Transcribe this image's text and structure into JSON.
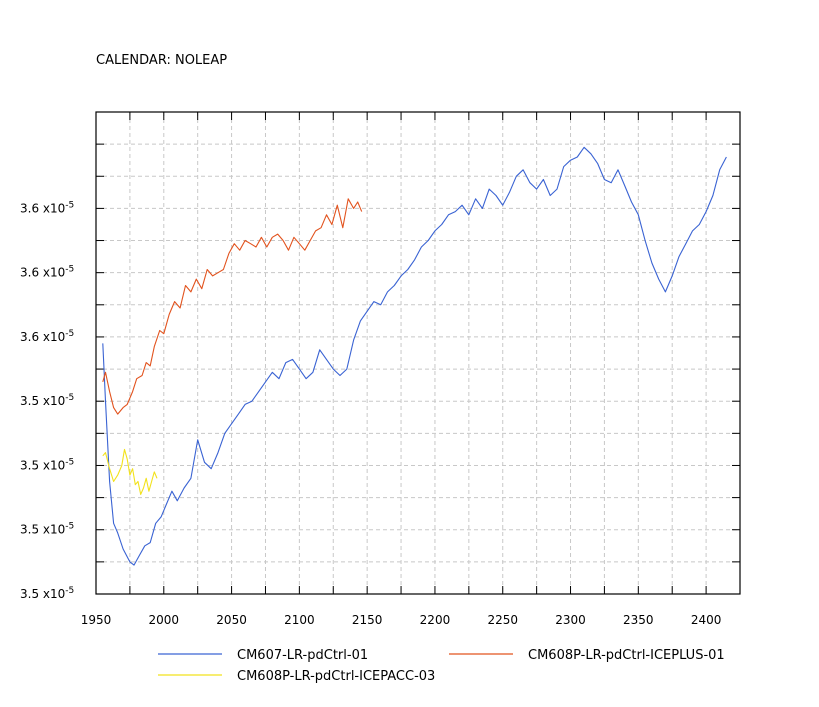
{
  "chart_data": {
    "type": "line",
    "calendar_label": "CALENDAR: NOLEAP",
    "xlim": [
      1950,
      2425
    ],
    "ylim": [
      0,
      15
    ],
    "x_ticks": [
      1950,
      2000,
      2050,
      2100,
      2150,
      2200,
      2250,
      2300,
      2350,
      2400
    ],
    "y_ticks": [
      {
        "value": 0,
        "mantissa": "3.5",
        "exponent": "-5"
      },
      {
        "value": 2,
        "mantissa": "3.5",
        "exponent": "-5"
      },
      {
        "value": 4,
        "mantissa": "3.5",
        "exponent": "-5"
      },
      {
        "value": 6,
        "mantissa": "3.5",
        "exponent": "-5"
      },
      {
        "value": 8,
        "mantissa": "3.6",
        "exponent": "-5"
      },
      {
        "value": 10,
        "mantissa": "3.6",
        "exponent": "-5"
      },
      {
        "value": 12,
        "mantissa": "3.6",
        "exponent": "-5"
      }
    ],
    "grid": true,
    "series": [
      {
        "name": "CM607-LR-pdCtrl-01",
        "color": "#3a63d3",
        "x": [
          1955,
          1957,
          1960,
          1963,
          1966,
          1970,
          1975,
          1978,
          1982,
          1986,
          1990,
          1994,
          1998,
          2002,
          2006,
          2010,
          2015,
          2020,
          2025,
          2030,
          2035,
          2040,
          2045,
          2050,
          2055,
          2060,
          2065,
          2070,
          2075,
          2080,
          2085,
          2090,
          2095,
          2100,
          2105,
          2110,
          2115,
          2120,
          2125,
          2130,
          2135,
          2140,
          2145,
          2150,
          2155,
          2160,
          2165,
          2170,
          2175,
          2180,
          2185,
          2190,
          2195,
          2200,
          2205,
          2210,
          2215,
          2220,
          2225,
          2230,
          2235,
          2240,
          2245,
          2250,
          2255,
          2260,
          2265,
          2270,
          2275,
          2280,
          2285,
          2290,
          2295,
          2300,
          2305,
          2310,
          2315,
          2320,
          2325,
          2330,
          2335,
          2340,
          2345,
          2350,
          2355,
          2360,
          2365,
          2370,
          2375,
          2380,
          2385,
          2390,
          2395,
          2400,
          2405,
          2410,
          2415
        ],
        "values": [
          7.8,
          6.0,
          3.5,
          2.2,
          1.9,
          1.4,
          1.0,
          0.9,
          1.2,
          1.5,
          1.6,
          2.2,
          2.4,
          2.8,
          3.2,
          2.9,
          3.3,
          3.6,
          4.8,
          4.1,
          3.9,
          4.4,
          5.0,
          5.3,
          5.6,
          5.9,
          6.0,
          6.3,
          6.6,
          6.9,
          6.7,
          7.2,
          7.3,
          7.0,
          6.7,
          6.9,
          7.6,
          7.3,
          7.0,
          6.8,
          7.0,
          7.9,
          8.5,
          8.8,
          9.1,
          9.0,
          9.4,
          9.6,
          9.9,
          10.1,
          10.4,
          10.8,
          11.0,
          11.3,
          11.5,
          11.8,
          11.9,
          12.1,
          11.8,
          12.3,
          12.0,
          12.6,
          12.4,
          12.1,
          12.5,
          13.0,
          13.2,
          12.8,
          12.6,
          12.9,
          12.4,
          12.6,
          13.3,
          13.5,
          13.6,
          13.9,
          13.7,
          13.4,
          12.9,
          12.8,
          13.2,
          12.7,
          12.2,
          11.8,
          11.0,
          10.3,
          9.8,
          9.4,
          9.9,
          10.5,
          10.9,
          11.3,
          11.5,
          11.9,
          12.4,
          13.2,
          13.6
        ]
      },
      {
        "name": "CM608P-LR-pdCtrl-ICEPLUS-01",
        "color": "#e2531e",
        "x": [
          1955,
          1957,
          1960,
          1963,
          1966,
          1970,
          1973,
          1977,
          1980,
          1984,
          1987,
          1990,
          1993,
          1997,
          2000,
          2004,
          2008,
          2012,
          2016,
          2020,
          2024,
          2028,
          2032,
          2036,
          2040,
          2044,
          2048,
          2052,
          2056,
          2060,
          2064,
          2068,
          2072,
          2076,
          2080,
          2084,
          2088,
          2092,
          2096,
          2100,
          2104,
          2108,
          2112,
          2116,
          2120,
          2124,
          2128,
          2132,
          2136,
          2140,
          2143,
          2146
        ],
        "values": [
          6.6,
          6.9,
          6.3,
          5.8,
          5.6,
          5.8,
          5.9,
          6.3,
          6.7,
          6.8,
          7.2,
          7.1,
          7.7,
          8.2,
          8.1,
          8.7,
          9.1,
          8.9,
          9.6,
          9.4,
          9.8,
          9.5,
          10.1,
          9.9,
          10.0,
          10.1,
          10.6,
          10.9,
          10.7,
          11.0,
          10.9,
          10.8,
          11.1,
          10.8,
          11.1,
          11.2,
          11.0,
          10.7,
          11.1,
          10.9,
          10.7,
          11.0,
          11.3,
          11.4,
          11.8,
          11.5,
          12.1,
          11.4,
          12.3,
          12.0,
          12.2,
          11.9
        ]
      },
      {
        "name": "CM608P-LR-pdCtrl-ICEPACC-03",
        "color": "#f2e21c",
        "x": [
          1955,
          1957,
          1960,
          1963,
          1966,
          1969,
          1971,
          1973,
          1975,
          1977,
          1979,
          1981,
          1983,
          1985,
          1987,
          1989,
          1991,
          1993,
          1995
        ],
        "values": [
          4.3,
          4.4,
          3.9,
          3.5,
          3.7,
          4.0,
          4.5,
          4.2,
          3.7,
          3.9,
          3.4,
          3.5,
          3.1,
          3.3,
          3.6,
          3.2,
          3.5,
          3.8,
          3.6
        ]
      }
    ]
  }
}
